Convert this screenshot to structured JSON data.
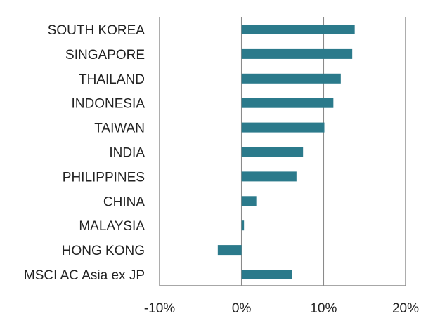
{
  "chart_data": {
    "type": "bar",
    "orientation": "horizontal",
    "categories": [
      "SOUTH KOREA",
      "SINGAPORE",
      "THAILAND",
      "INDONESIA",
      "TAIWAN",
      "INDIA",
      "PHILIPPINES",
      "CHINA",
      "MALAYSIA",
      "HONG KONG",
      "MSCI AC Asia ex JP"
    ],
    "values": [
      13.8,
      13.5,
      12.1,
      11.2,
      10.1,
      7.5,
      6.7,
      1.8,
      0.3,
      -2.9,
      6.2
    ],
    "value_unit": "%",
    "xlim": [
      -10,
      20
    ],
    "x_ticks": [
      -10,
      0,
      10,
      20
    ],
    "x_tick_labels": [
      "-10%",
      "0%",
      "10%",
      "20%"
    ],
    "grid": "vertical",
    "bar_color": "#2b7a8b",
    "grid_color": "#8a8a8a"
  }
}
